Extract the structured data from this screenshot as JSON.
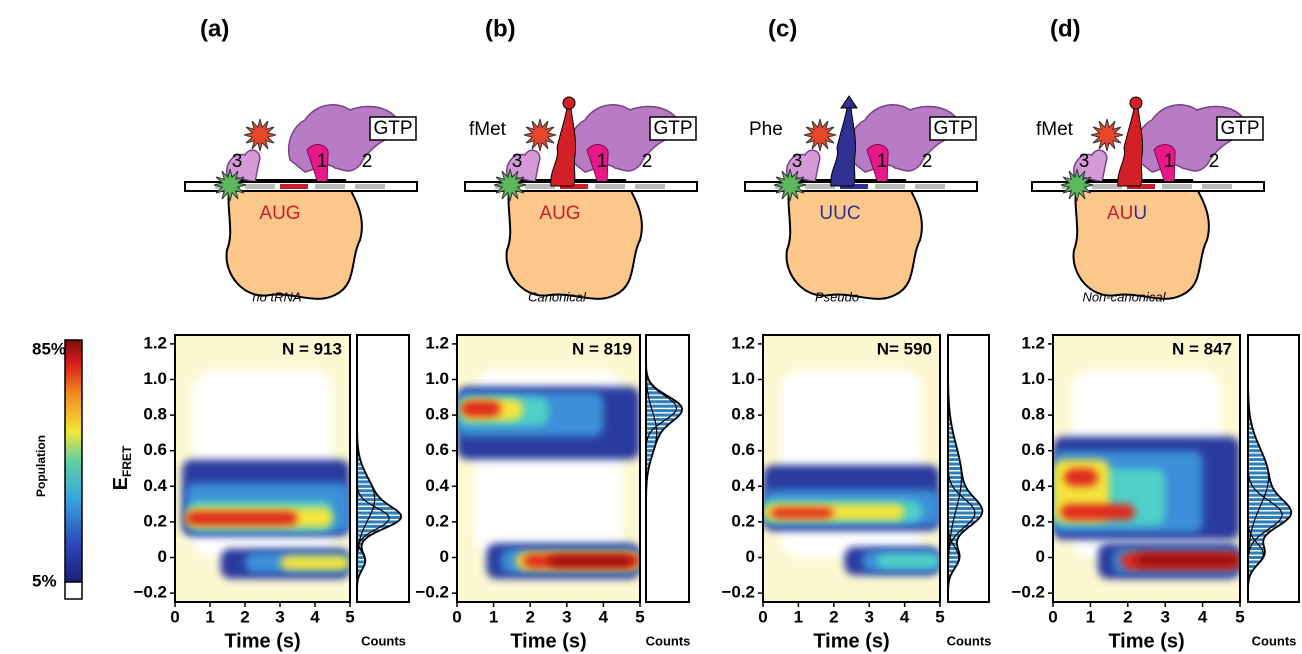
{
  "colorbar": {
    "max_label": "85%",
    "min_label": "5%",
    "title": "Population"
  },
  "diagram": {
    "gtp": "GTP",
    "site_e": "3",
    "site_p": "1",
    "site_a": "2"
  },
  "axes": {
    "ylabel": "E",
    "ylabel_sub": "FRET",
    "xlabel": "Time (s)",
    "hist_label": "Counts",
    "ylim": [
      -0.25,
      1.25
    ],
    "yticks": [
      {
        "value": 1.2,
        "label": "1.2"
      },
      {
        "value": 1,
        "label": "1.0"
      },
      {
        "value": 0.8,
        "label": "0.8"
      },
      {
        "value": 0.6,
        "label": "0.6"
      },
      {
        "value": 0.4,
        "label": "0.4"
      },
      {
        "value": 0.2,
        "label": "0.2"
      },
      0,
      {
        "value": -0.2,
        "label": "−0.2"
      }
    ],
    "xlim": [
      0,
      5
    ],
    "xticks": [
      0,
      1,
      2,
      3,
      4,
      5
    ]
  },
  "panels": [
    {
      "label": "(a)",
      "codon_parts": [
        {
          "text": "AUG",
          "color": "#c8202a"
        }
      ],
      "caption": "no tRNA",
      "n_label": "N = 913"
    },
    {
      "label": "(b)",
      "trna": "fMet",
      "trna_color": "#d32027",
      "codon_parts": [
        {
          "text": "AUG",
          "color": "#c8202a"
        }
      ],
      "caption": "Canonical",
      "n_label": "N = 819"
    },
    {
      "label": "(c)",
      "trna": "Phe",
      "trna_color": "#2e3192",
      "codon_parts": [
        {
          "text": "UUC",
          "color": "#2e3192"
        }
      ],
      "caption": "Pseudo",
      "n_label": "N= 590"
    },
    {
      "label": "(d)",
      "trna": "fMet",
      "trna_color": "#d32027",
      "codon_parts": [
        {
          "text": "AU",
          "color": "#c8202a"
        },
        {
          "text": "U",
          "color": "#2e3192"
        }
      ],
      "caption": "Non-canonical",
      "n_label": "N = 847"
    }
  ]
}
